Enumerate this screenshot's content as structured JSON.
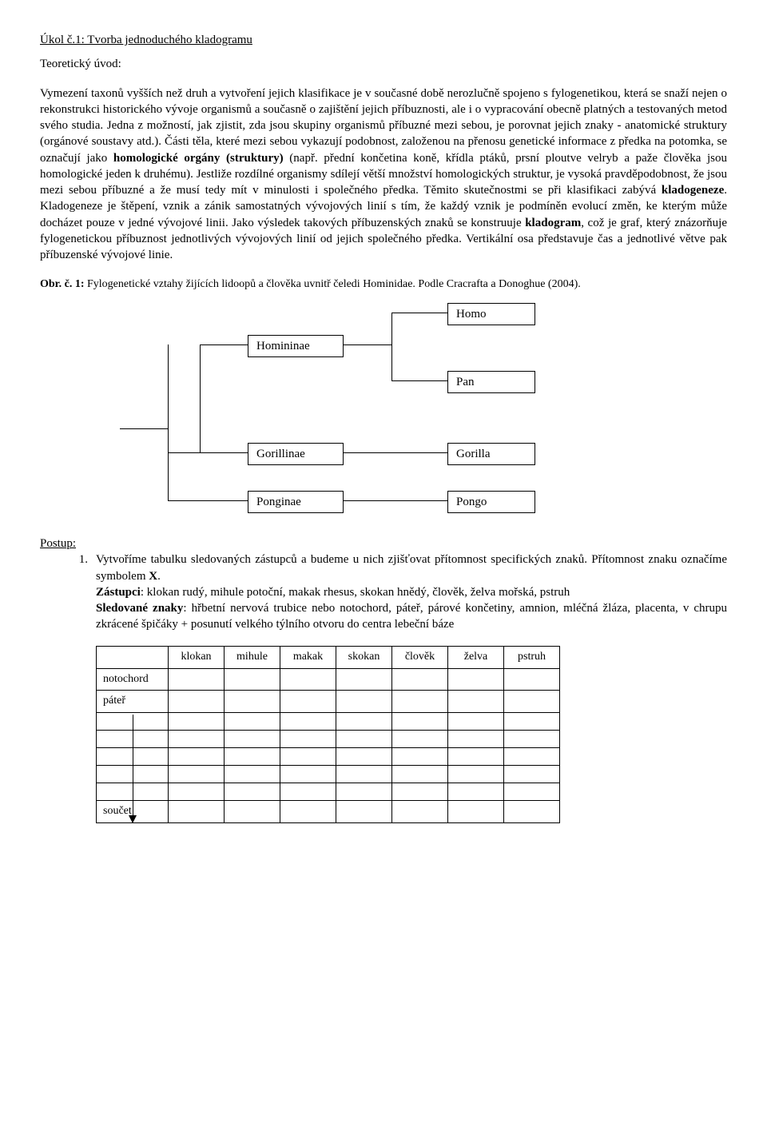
{
  "task_title": "Úkol č.1: Tvorba jednoduchého kladogramu",
  "theory_heading": "Teoretický úvod:",
  "theory_body_html": "Vymezení taxonů vyšších než druh a vytvoření jejich klasifikace je v současné době nerozlučně spojeno s fylogenetikou, která se snaží nejen o rekonstrukci historického vývoje organismů a současně o zajištění jejich příbuznosti, ale i o vypracování obecně platných a testovaných metod svého studia. Jedna z možností, jak zjistit, zda jsou skupiny organismů příbuzné mezi sebou, je porovnat jejich znaky - anatomické struktury (orgánové soustavy atd.). Části těla, které mezi sebou vykazují podobnost, založenou na přenosu genetické informace z předka na potomka, se označují jako <b>homologické orgány (struktury)</b> (např. přední končetina koně, křídla ptáků, prsní ploutve velryb a paže člověka jsou homologické jeden k druhému). Jestliže rozdílné organismy sdílejí větší množství homologických struktur, je vysoká pravděpodobnost, že jsou mezi sebou příbuzné a že musí tedy mít v minulosti i společného předka. Těmito skutečnostmi se při klasifikaci zabývá <b>kladogeneze</b>. Kladogeneze je štěpení, vznik a zánik samostatných vývojových linií s tím, že každý vznik je podmíněn evolucí změn, ke kterým může docházet pouze v jedné vývojové linii. Jako výsledek takových příbuzenských znaků se konstruuje <b>kladogram</b>, což je graf, který znázorňuje fylogenetickou příbuznost jednotlivých vývojových linií od jejich společného předka. Vertikální osa představuje čas a jednotlivé větve pak příbuzenské vývojové linie.",
  "fig_caption_html": "<b>Obr. č. 1:</b> Fylogenetické vztahy žijících lidoopů a člověka uvnitř čeledi Hominidae. Podle Cracrafta a Donoghue (2004).",
  "cladogram": {
    "nodes": {
      "homininae": "Homininae",
      "gorillinae": "Gorillinae",
      "ponginae": "Ponginae",
      "homo": "Homo",
      "pan": "Pan",
      "gorilla": "Gorilla",
      "pongo": "Pongo"
    }
  },
  "postup_label": "Postup:",
  "postup_num": "1.",
  "postup_text_html": "Vytvoříme tabulku sledovaných zástupců a budeme u nich zjišťovat přítomnost specifických znaků. Přítomnost znaku označíme symbolem <b>X</b>.<br><b>Zástupci</b>: klokan rudý, mihule potoční, makak rhesus, skokan hnědý, člověk, želva mořská, pstruh<br><b>Sledované znaky</b>: hřbetní nervová trubice nebo notochord, páteř, párové končetiny, amnion, mléčná žláza, placenta, v chrupu zkrácené špičáky + posunutí velkého týlního otvoru do centra lebeční báze",
  "table": {
    "columns": [
      "klokan",
      "mihule",
      "makak",
      "skokan",
      "člověk",
      "želva",
      "pstruh"
    ],
    "row_headers": [
      "notochord",
      "páteř",
      "",
      "",
      "",
      "",
      "",
      "součet"
    ]
  }
}
